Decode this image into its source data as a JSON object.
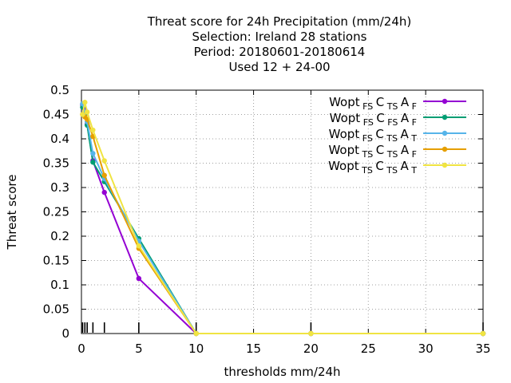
{
  "chart_data": {
    "type": "line",
    "title_lines": [
      "Threat score  for 24h Precipitation (mm/24h)",
      "Selection: Ireland      28 stations",
      "Period: 20180601-20180614",
      "Used  12 + 24-00"
    ],
    "xlabel": "thresholds mm/24h",
    "ylabel": "Threat score",
    "xlim": [
      0,
      35
    ],
    "ylim": [
      0,
      0.5
    ],
    "xticks": [
      0,
      5,
      10,
      15,
      20,
      25,
      30,
      35
    ],
    "yticks": [
      0,
      0.05,
      0.1,
      0.15,
      0.2,
      0.25,
      0.3,
      0.35,
      0.4,
      0.45,
      0.5
    ],
    "grid": true,
    "legend_position": "top-right",
    "x": [
      0.1,
      0.3,
      0.5,
      1,
      2,
      5,
      10,
      20,
      35
    ],
    "series": [
      {
        "legend": {
          "base": "Wopt",
          "s1": "FS",
          "m": "C",
          "s2": "TS",
          "a": "A",
          "s3": "F"
        },
        "color": "#9400d3",
        "values": [
          0.47,
          0.46,
          0.43,
          0.355,
          0.29,
          0.113,
          0.0,
          0.0,
          0.0
        ]
      },
      {
        "legend": {
          "base": "Wopt",
          "s1": "FS",
          "m": "C",
          "s2": "FS",
          "a": "A",
          "s3": "F"
        },
        "color": "#009e73",
        "values": [
          0.465,
          0.45,
          0.428,
          0.352,
          0.312,
          0.195,
          0.0,
          0.0,
          0.0
        ]
      },
      {
        "legend": {
          "base": "Wopt",
          "s1": "FS",
          "m": "C",
          "s2": "TS",
          "a": "A",
          "s3": "T"
        },
        "color": "#56b4e9",
        "values": [
          0.472,
          0.455,
          0.435,
          0.37,
          0.318,
          0.19,
          0.0,
          0.0,
          0.0
        ]
      },
      {
        "legend": {
          "base": "Wopt",
          "s1": "TS",
          "m": "C",
          "s2": "TS",
          "a": "A",
          "s3": "F"
        },
        "color": "#e69f00",
        "values": [
          0.45,
          0.445,
          0.44,
          0.405,
          0.325,
          0.175,
          0.0,
          0.0,
          0.0
        ]
      },
      {
        "legend": {
          "base": "Wopt",
          "s1": "TS",
          "m": "C",
          "s2": "TS",
          "a": "A",
          "s3": "T"
        },
        "color": "#f0e442",
        "values": [
          0.45,
          0.475,
          0.455,
          0.418,
          0.355,
          0.18,
          0.0,
          0.0,
          0.0
        ]
      }
    ],
    "threshold_marks": [
      0.1,
      0.3,
      0.5,
      1,
      2,
      5,
      10,
      20,
      35
    ]
  }
}
